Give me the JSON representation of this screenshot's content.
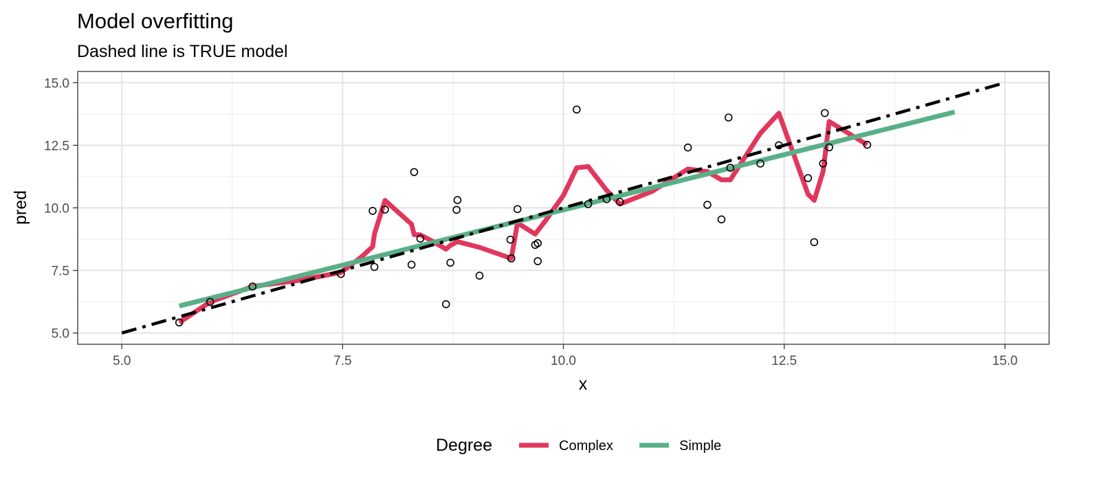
{
  "chart_data": {
    "type": "scatter",
    "title": "Model overfitting",
    "subtitle": "Dashed line is TRUE model",
    "xlabel": "x",
    "ylabel": "pred",
    "xlim": [
      4.5,
      15.5
    ],
    "ylim": [
      4.55,
      15.45
    ],
    "x_ticks": [
      5.0,
      7.5,
      10.0,
      12.5,
      15.0
    ],
    "x_tick_labels": [
      "5.0",
      "7.5",
      "10.0",
      "12.5",
      "15.0"
    ],
    "y_ticks": [
      5.0,
      7.5,
      10.0,
      12.5,
      15.0
    ],
    "y_tick_labels": [
      "5.0",
      "7.5",
      "10.0",
      "12.5",
      "15.0"
    ],
    "grid": true,
    "legend": {
      "position": "bottom",
      "title": "Degree",
      "entries": [
        {
          "label": "Complex",
          "color": "#e2375c"
        },
        {
          "label": "Simple",
          "color": "#5aaf88"
        }
      ]
    },
    "points": [
      {
        "x": 5.65,
        "y": 5.42
      },
      {
        "x": 6.0,
        "y": 6.24
      },
      {
        "x": 6.48,
        "y": 6.86
      },
      {
        "x": 7.48,
        "y": 7.36
      },
      {
        "x": 7.84,
        "y": 9.88
      },
      {
        "x": 7.86,
        "y": 7.64
      },
      {
        "x": 7.98,
        "y": 9.93
      },
      {
        "x": 8.28,
        "y": 7.73
      },
      {
        "x": 8.31,
        "y": 11.43
      },
      {
        "x": 8.38,
        "y": 8.77
      },
      {
        "x": 8.67,
        "y": 6.15
      },
      {
        "x": 8.72,
        "y": 7.81
      },
      {
        "x": 8.79,
        "y": 9.92
      },
      {
        "x": 8.8,
        "y": 10.31
      },
      {
        "x": 9.05,
        "y": 7.29
      },
      {
        "x": 9.4,
        "y": 8.73
      },
      {
        "x": 9.41,
        "y": 7.98
      },
      {
        "x": 9.48,
        "y": 9.95
      },
      {
        "x": 9.68,
        "y": 8.52
      },
      {
        "x": 9.71,
        "y": 8.59
      },
      {
        "x": 9.71,
        "y": 7.87
      },
      {
        "x": 10.15,
        "y": 13.93
      },
      {
        "x": 10.28,
        "y": 10.15
      },
      {
        "x": 10.49,
        "y": 10.35
      },
      {
        "x": 10.64,
        "y": 10.24
      },
      {
        "x": 11.41,
        "y": 12.41
      },
      {
        "x": 11.63,
        "y": 10.12
      },
      {
        "x": 11.79,
        "y": 9.54
      },
      {
        "x": 11.87,
        "y": 13.61
      },
      {
        "x": 11.89,
        "y": 11.6
      },
      {
        "x": 12.23,
        "y": 11.77
      },
      {
        "x": 12.44,
        "y": 12.5
      },
      {
        "x": 12.77,
        "y": 11.19
      },
      {
        "x": 12.84,
        "y": 8.63
      },
      {
        "x": 12.94,
        "y": 11.77
      },
      {
        "x": 12.96,
        "y": 13.79
      },
      {
        "x": 13.01,
        "y": 12.42
      },
      {
        "x": 13.44,
        "y": 12.52
      }
    ],
    "series": [
      {
        "name": "Complex",
        "color": "#e2375c",
        "x": [
          5.65,
          6.0,
          6.48,
          7.0,
          7.48,
          7.7,
          7.84,
          7.86,
          7.98,
          8.28,
          8.31,
          8.38,
          8.5,
          8.67,
          8.72,
          8.8,
          9.05,
          9.41,
          9.48,
          9.68,
          9.8,
          10.0,
          10.15,
          10.28,
          10.49,
          10.64,
          11.0,
          11.41,
          11.63,
          11.79,
          11.89,
          12.23,
          12.44,
          12.77,
          12.84,
          12.94,
          13.01,
          13.44
        ],
        "y": [
          5.42,
          6.24,
          6.86,
          7.1,
          7.42,
          8.0,
          8.45,
          8.95,
          10.3,
          9.35,
          8.93,
          8.92,
          8.7,
          8.35,
          8.5,
          8.65,
          8.42,
          7.98,
          9.4,
          8.95,
          9.5,
          10.5,
          11.6,
          11.65,
          10.7,
          10.15,
          10.65,
          11.55,
          11.45,
          11.12,
          11.12,
          12.98,
          13.78,
          10.55,
          10.3,
          11.45,
          13.45,
          12.52
        ]
      },
      {
        "name": "Simple",
        "color": "#5aaf88",
        "x": [
          5.65,
          14.43
        ],
        "y": [
          6.08,
          13.83
        ]
      },
      {
        "name": "",
        "color": "#000000",
        "x": [
          5.0,
          15.0
        ],
        "y": [
          5.0,
          15.0
        ]
      }
    ]
  }
}
